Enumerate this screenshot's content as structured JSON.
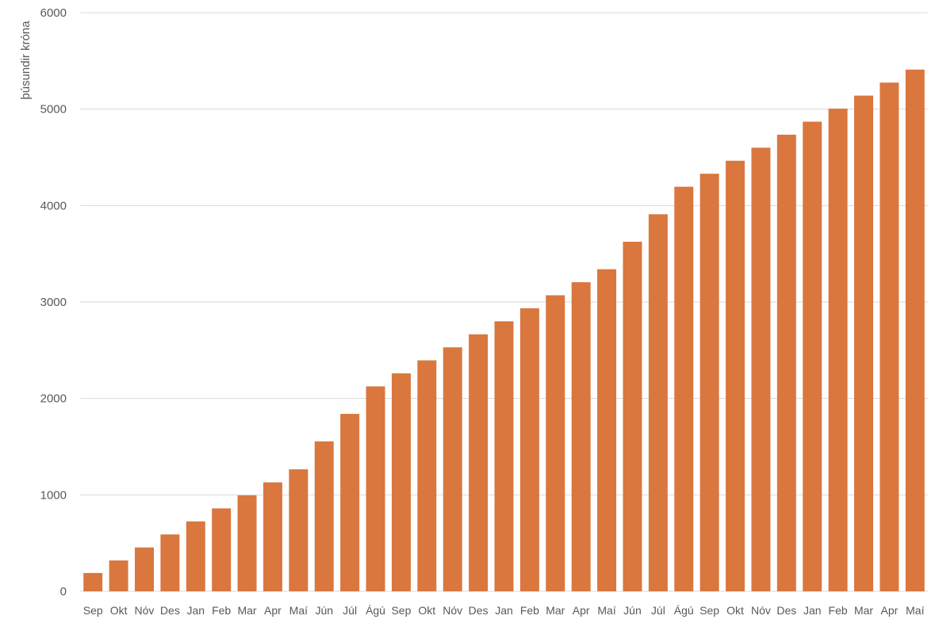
{
  "chart_data": {
    "type": "bar",
    "title": "",
    "xlabel": "",
    "ylabel": "þúsundir króna",
    "ylim": [
      0,
      6000
    ],
    "yticks": [
      0,
      1000,
      2000,
      3000,
      4000,
      5000,
      6000
    ],
    "grid": true,
    "legend": "none",
    "bar_color": "#D9773F",
    "categories": [
      "Sep",
      "Okt",
      "Nóv",
      "Des",
      "Jan",
      "Feb",
      "Mar",
      "Apr",
      "Maí",
      "Jún",
      "Júl",
      "Ágú",
      "Sep",
      "Okt",
      "Nóv",
      "Des",
      "Jan",
      "Feb",
      "Mar",
      "Apr",
      "Maí",
      "Jún",
      "Júl",
      "Ágú",
      "Sep",
      "Okt",
      "Nóv",
      "Des",
      "Jan",
      "Feb",
      "Mar",
      "Apr",
      "Maí"
    ],
    "values": [
      190,
      320,
      455,
      590,
      725,
      860,
      995,
      1130,
      1265,
      1555,
      1840,
      2125,
      2260,
      2395,
      2530,
      2665,
      2800,
      2935,
      3070,
      3205,
      3340,
      3625,
      3910,
      4195,
      4330,
      4465,
      4600,
      4735,
      4870,
      5005,
      5140,
      5275,
      5410
    ]
  }
}
